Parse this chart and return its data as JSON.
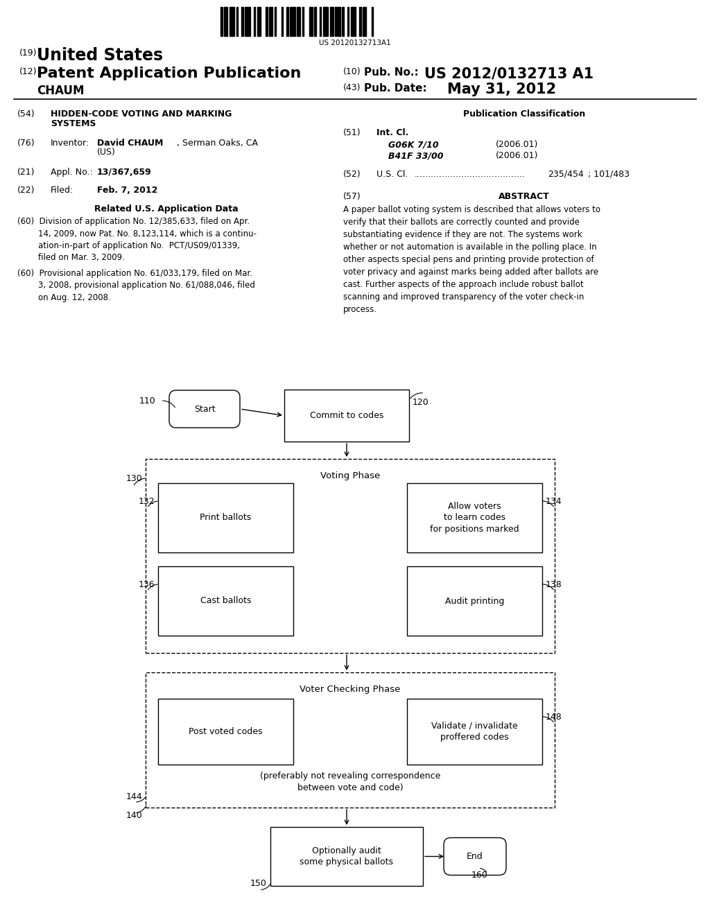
{
  "background_color": "#ffffff",
  "header": {
    "barcode_text": "US 20120132713A1",
    "pub_no": "US 2012/0132713 A1",
    "pub_date": "May 31, 2012"
  },
  "diagram": {
    "start_label": "Start",
    "node110": "110",
    "commit_label": "Commit to codes",
    "node120": "120",
    "node130": "130",
    "voting_phase_label": "Voting Phase",
    "print_ballots": "Print ballots",
    "node132": "132",
    "allow_voters": "Allow voters\nto learn codes\nfor positions marked",
    "node134": "134",
    "cast_ballots": "Cast ballots",
    "node136": "136",
    "audit_printing": "Audit printing",
    "node138": "138",
    "voter_checking": "Voter Checking Phase",
    "post_voted": "Post voted codes",
    "node144": "144",
    "validate": "Validate / invalidate\nproffered codes",
    "node148": "148",
    "note_text": "(preferably not revealing correspondence\nbetween vote and code)",
    "node140": "140",
    "optionally_audit": "Optionally audit\nsome physical ballots",
    "node150": "150",
    "end_label": "End",
    "node160": "160"
  }
}
